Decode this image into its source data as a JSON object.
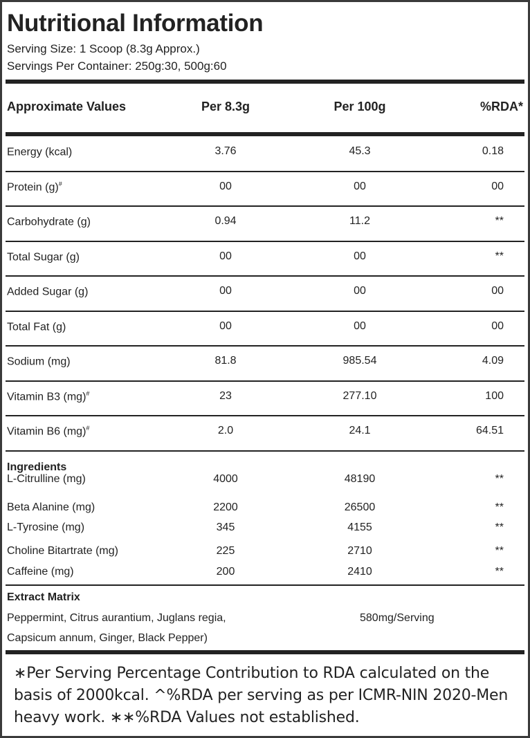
{
  "title": "Nutritional Information",
  "serving_size": "Serving Size: 1 Scoop (8.3g Approx.)",
  "servings_per_container": "Servings Per Container: 250g:30, 500g:60",
  "header": {
    "label": "Approximate Values",
    "per_serving": "Per 8.3g",
    "per_100g": "Per 100g",
    "rda": "%RDA*"
  },
  "nutrients": [
    {
      "label": "Energy (kcal)",
      "sup": "",
      "per_serving": "3.76",
      "per_100g": "45.3",
      "rda": "0.18"
    },
    {
      "label": "Protein (g)",
      "sup": "#",
      "per_serving": "00",
      "per_100g": "00",
      "rda": "00"
    },
    {
      "label": "Carbohydrate (g)",
      "sup": "",
      "per_serving": "0.94",
      "per_100g": "11.2",
      "rda": "**"
    },
    {
      "label": "Total Sugar (g)",
      "sup": "",
      "per_serving": "00",
      "per_100g": "00",
      "rda": "**"
    },
    {
      "label": "Added Sugar (g)",
      "sup": "",
      "per_serving": "00",
      "per_100g": "00",
      "rda": "00"
    },
    {
      "label": "Total Fat (g)",
      "sup": "",
      "per_serving": "00",
      "per_100g": "00",
      "rda": "00"
    },
    {
      "label": "Sodium (mg)",
      "sup": "",
      "per_serving": "81.8",
      "per_100g": "985.54",
      "rda": "4.09"
    },
    {
      "label": "Vitamin B3 (mg)",
      "sup": "#",
      "per_serving": "23",
      "per_100g": "277.10",
      "rda": "100"
    },
    {
      "label": "Vitamin B6 (mg)",
      "sup": "#",
      "per_serving": "2.0",
      "per_100g": "24.1",
      "rda": "64.51"
    }
  ],
  "ingredients": {
    "heading": "Ingredients",
    "items": [
      {
        "label": "L-Citrulline (mg)",
        "per_serving": "4000",
        "per_100g": "48190",
        "rda": "**"
      },
      {
        "label": "Beta Alanine (mg)",
        "per_serving": "2200",
        "per_100g": "26500",
        "rda": "**"
      },
      {
        "label": "L-Tyrosine (mg)",
        "per_serving": "345",
        "per_100g": "4155",
        "rda": "**"
      },
      {
        "label": "Choline Bitartrate (mg)",
        "per_serving": "225",
        "per_100g": "2710",
        "rda": "**"
      },
      {
        "label": "Caffeine (mg)",
        "per_serving": "200",
        "per_100g": "2410",
        "rda": "**"
      }
    ]
  },
  "extract": {
    "heading": "Extract Matrix",
    "line1": "Peppermint, Citrus aurantium, Juglans regia,",
    "line2": "Capsicum annum, Ginger, Black Pepper)",
    "amount": "580mg/Serving"
  },
  "footnote": "∗Per Serving Percentage Contribution to RDA calculated on the basis of 2000kcal. ^%RDA per serving as per ICMR-NIN 2020-Men heavy work. ∗∗%RDA Values not established."
}
